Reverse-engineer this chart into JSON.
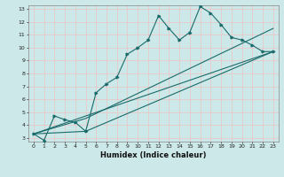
{
  "xlabel": "Humidex (Indice chaleur)",
  "ylabel": "",
  "xlim": [
    -0.5,
    23.5
  ],
  "ylim": [
    2.7,
    13.3
  ],
  "background_color": "#cce8e8",
  "plot_bg_color": "#cce8e8",
  "grid_color": "#e8c8c8",
  "line_color": "#1a6b6b",
  "curve_x": [
    0,
    1,
    2,
    3,
    4,
    5,
    6,
    7,
    8,
    9,
    10,
    11,
    12,
    13,
    14,
    15,
    16,
    17,
    18,
    19,
    20,
    21,
    22,
    23
  ],
  "curve_y": [
    3.3,
    2.8,
    4.7,
    4.4,
    4.2,
    3.5,
    6.5,
    7.2,
    7.7,
    9.5,
    10.0,
    10.6,
    12.5,
    11.5,
    10.6,
    11.2,
    13.2,
    12.7,
    11.8,
    10.8,
    10.6,
    10.2,
    9.7,
    9.7
  ],
  "line1_x": [
    0,
    23
  ],
  "line1_y": [
    3.3,
    9.7
  ],
  "line2_x": [
    0,
    5,
    23
  ],
  "line2_y": [
    3.3,
    3.5,
    9.7
  ],
  "line3_x": [
    0,
    5,
    23
  ],
  "line3_y": [
    3.3,
    4.5,
    11.5
  ],
  "xtick_labels": [
    "0",
    "1",
    "2",
    "3",
    "4",
    "5",
    "6",
    "7",
    "8",
    "9",
    "10",
    "11",
    "12",
    "13",
    "14",
    "15",
    "16",
    "17",
    "18",
    "19",
    "20",
    "21",
    "22",
    "23"
  ],
  "ytick_values": [
    3,
    4,
    5,
    6,
    7,
    8,
    9,
    10,
    11,
    12,
    13
  ],
  "xlabel_fontsize": 6,
  "tick_fontsize": 4.5,
  "marker_size": 2.0,
  "line_width": 0.8
}
